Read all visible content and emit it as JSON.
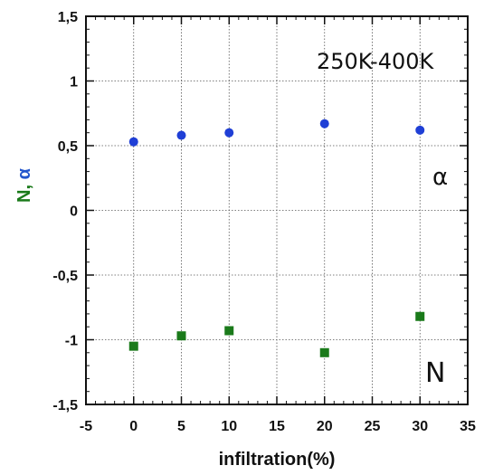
{
  "chart_data": {
    "type": "scatter",
    "xlabel": "infiltration(%)",
    "ylabel_parts": [
      {
        "text": "N",
        "color": "#1a7a1a"
      },
      {
        "text": ", ",
        "color": "#1a7a1a"
      },
      {
        "text": "α",
        "color": "#2255cc"
      }
    ],
    "xlim": [
      -5,
      35
    ],
    "ylim": [
      -1.5,
      1.5
    ],
    "xticks": [
      -5,
      0,
      5,
      10,
      15,
      20,
      25,
      30,
      35
    ],
    "xtick_labels": [
      "-5",
      "0",
      "5",
      "10",
      "15",
      "20",
      "25",
      "30",
      "35"
    ],
    "yticks": [
      -1.5,
      -1,
      -0.5,
      0,
      0.5,
      1,
      1.5
    ],
    "ytick_labels": [
      "-1,5",
      "-1",
      "-0,5",
      "0",
      "0,5",
      "1",
      "1,5"
    ],
    "grid": true,
    "series": [
      {
        "name": "α",
        "marker": "circle",
        "color": "#1f3fd6",
        "x": [
          0,
          5,
          10,
          20,
          30
        ],
        "y": [
          0.53,
          0.58,
          0.6,
          0.67,
          0.62
        ]
      },
      {
        "name": "N",
        "marker": "square",
        "color": "#1a7a1a",
        "x": [
          0,
          5,
          10,
          20,
          30
        ],
        "y": [
          -1.05,
          -0.97,
          -0.93,
          -1.1,
          -0.82
        ]
      }
    ],
    "annotations": {
      "range_label": "250K-400K",
      "alpha_label": "α",
      "n_label": "N"
    }
  }
}
